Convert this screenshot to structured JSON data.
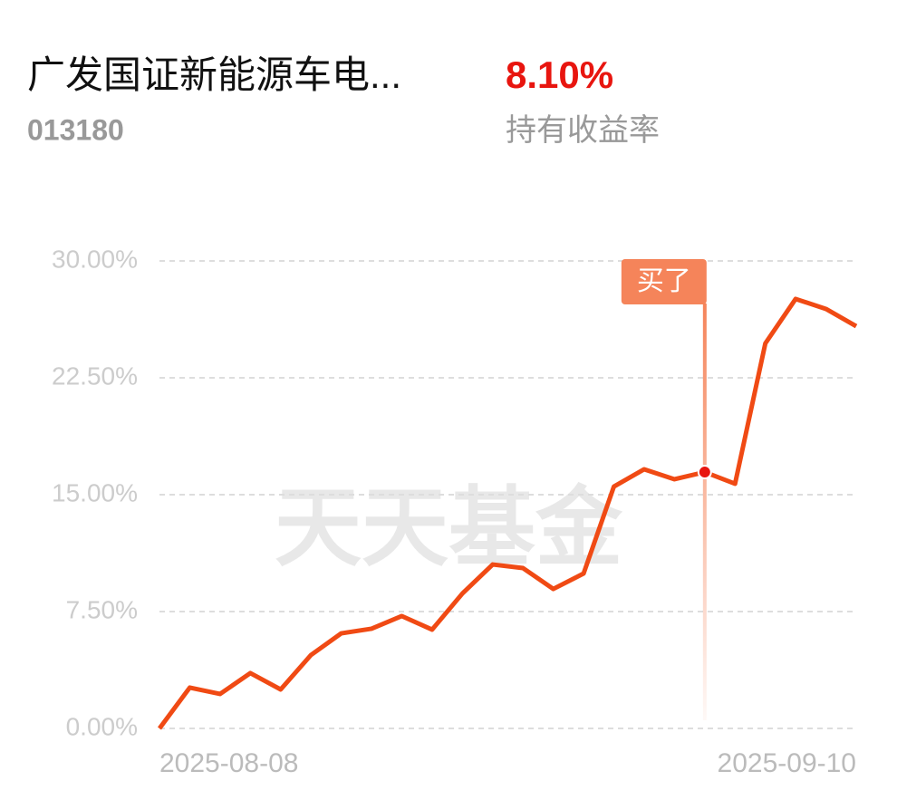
{
  "header": {
    "title": "广发国证新能源车电...",
    "code": "013180",
    "return_value": "8.10%",
    "return_label": "持有收益率"
  },
  "chart_data": {
    "type": "line",
    "watermark": "天天基金",
    "categories": [
      "2025-08-08",
      null,
      null,
      null,
      null,
      null,
      null,
      null,
      null,
      null,
      null,
      null,
      null,
      null,
      null,
      null,
      null,
      null,
      null,
      null,
      null,
      null,
      null,
      "2025-09-10"
    ],
    "series": [
      {
        "name": null,
        "color": "#f04a14",
        "values": [
          0,
          2.62,
          2.21,
          3.55,
          2.5,
          4.71,
          6.1,
          6.4,
          7.21,
          6.34,
          8.66,
          10.52,
          10.29,
          8.95,
          9.94,
          15.52,
          16.63,
          15.99,
          16.45,
          15.7,
          24.71,
          27.56,
          26.92,
          25.81
        ]
      }
    ],
    "ylim": [
      0,
      30
    ],
    "yticks": [
      {
        "value": 0,
        "label": "0.00%"
      },
      {
        "value": 7.5,
        "label": "7.50%"
      },
      {
        "value": 15,
        "label": "15.00%"
      },
      {
        "value": 22.5,
        "label": "22.50%"
      },
      {
        "value": 30,
        "label": "30.00%"
      }
    ],
    "grid": true,
    "annotations": [
      {
        "index": 18,
        "text": "买了"
      }
    ]
  }
}
